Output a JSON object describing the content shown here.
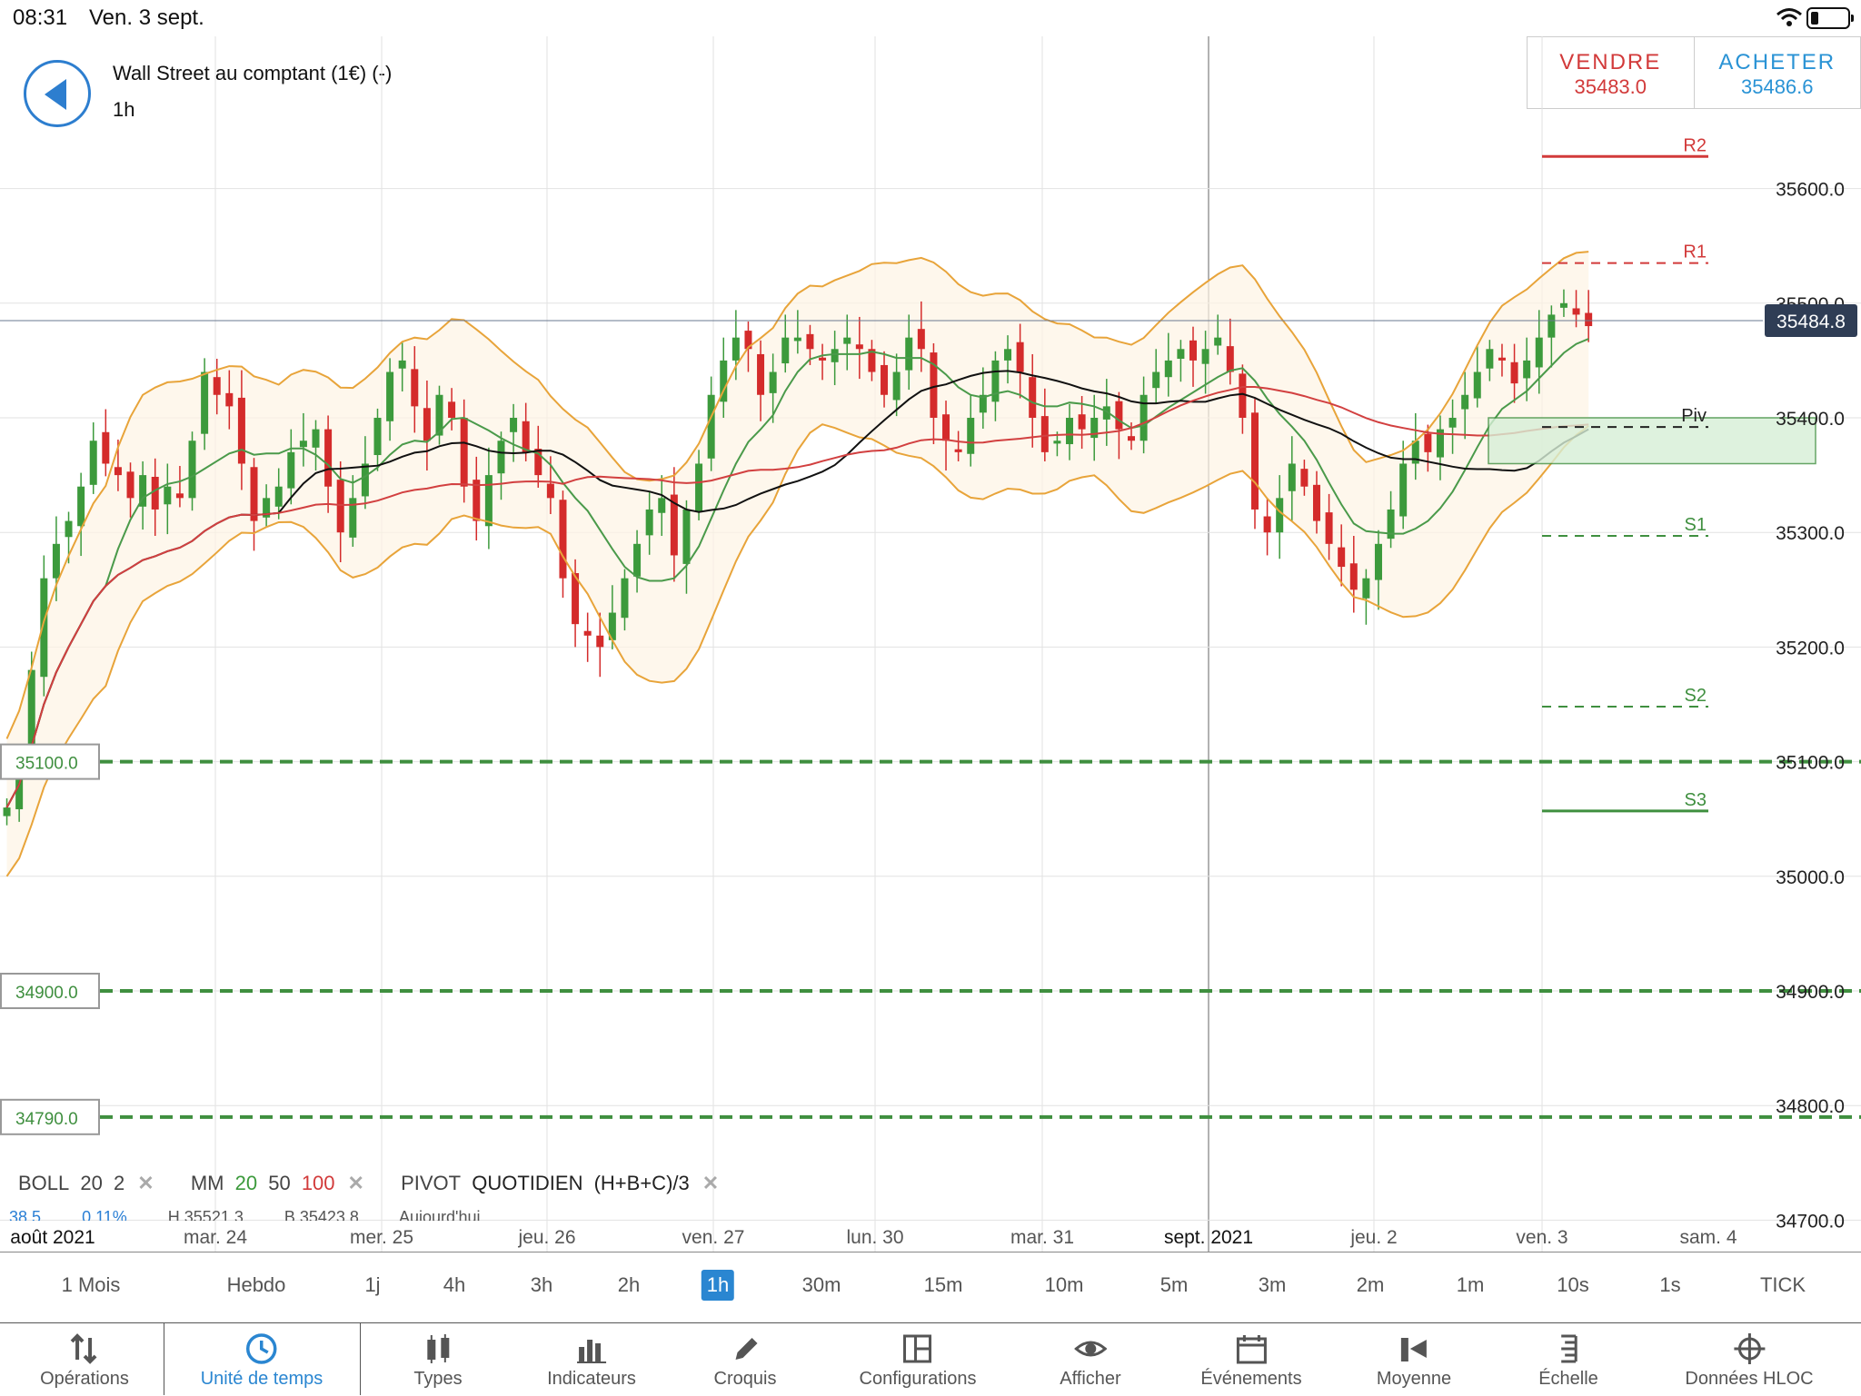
{
  "status": {
    "time": "08:31",
    "date": "Ven. 3 sept."
  },
  "header": {
    "instrument": "Wall Street au comptant (1€) (-)",
    "timeframe": "1h"
  },
  "trade": {
    "sell_label": "VENDRE",
    "sell_price": "35483.0",
    "buy_label": "ACHETER",
    "buy_price": "35486.6"
  },
  "price_axis": [
    "35600.0",
    "35500.0",
    "35400.0",
    "35300.0",
    "35200.0",
    "35100.0",
    "35000.0",
    "34900.0",
    "34800.0",
    "34700.0"
  ],
  "current_price": "35484.8",
  "levels": {
    "alerts": [
      "35100.0",
      "34900.0",
      "34790.0"
    ],
    "pivots": [
      {
        "name": "R2",
        "value": 35628
      },
      {
        "name": "R1",
        "value": 35535
      },
      {
        "name": "Piv",
        "value": 35392
      },
      {
        "name": "S1",
        "value": 35297
      },
      {
        "name": "S2",
        "value": 35148
      },
      {
        "name": "S3",
        "value": 35057
      }
    ]
  },
  "date_axis": [
    "août 2021",
    "mar. 24",
    "mer. 25",
    "jeu. 26",
    "ven. 27",
    "lun. 30",
    "mar. 31",
    "sept. 2021",
    "jeu. 2",
    "ven. 3",
    "sam. 4"
  ],
  "legend": {
    "boll": "BOLL",
    "boll_p1": "20",
    "boll_p2": "2",
    "mm": "MM",
    "mm_p1": "20",
    "mm_p2": "50",
    "mm_p3": "100",
    "pivot": "PIVOT",
    "pivot_mode": "QUOTIDIEN",
    "pivot_formula": "(H+B+C)/3",
    "row2_a": "38.5",
    "row2_b": "0.11%",
    "row2_c": "H 35521.3",
    "row2_d": "B 35423.8",
    "row2_e": "Aujourd'hui"
  },
  "timeframes": [
    "1 Mois",
    "Hebdo",
    "1j",
    "4h",
    "3h",
    "2h",
    "1h",
    "30m",
    "15m",
    "10m",
    "5m",
    "3m",
    "2m",
    "1m",
    "10s",
    "1s",
    "TICK"
  ],
  "active_timeframe": "1h",
  "toolbar": [
    {
      "label": "Opérations",
      "icon": "arrows-updown-icon"
    },
    {
      "label": "Unité de temps",
      "icon": "clock-icon"
    },
    {
      "label": "Types",
      "icon": "candlestick-icon"
    },
    {
      "label": "Indicateurs",
      "icon": "bar-chart-icon"
    },
    {
      "label": "Croquis",
      "icon": "pencil-icon"
    },
    {
      "label": "Configurations",
      "icon": "layout-icon"
    },
    {
      "label": "Afficher",
      "icon": "eye-icon"
    },
    {
      "label": "Événements",
      "icon": "calendar-icon"
    },
    {
      "label": "Moyenne",
      "icon": "average-icon"
    },
    {
      "label": "Échelle",
      "icon": "scale-icon"
    },
    {
      "label": "Données HLOC",
      "icon": "crosshair-icon"
    }
  ],
  "colors": {
    "up": "#3c9a3c",
    "down": "#d42b2b",
    "bollinger": "#e8a43a",
    "ma20": "#4a9a4a",
    "ma50": "#111111",
    "ma100": "#d24040",
    "accent": "#2a86d1"
  }
}
